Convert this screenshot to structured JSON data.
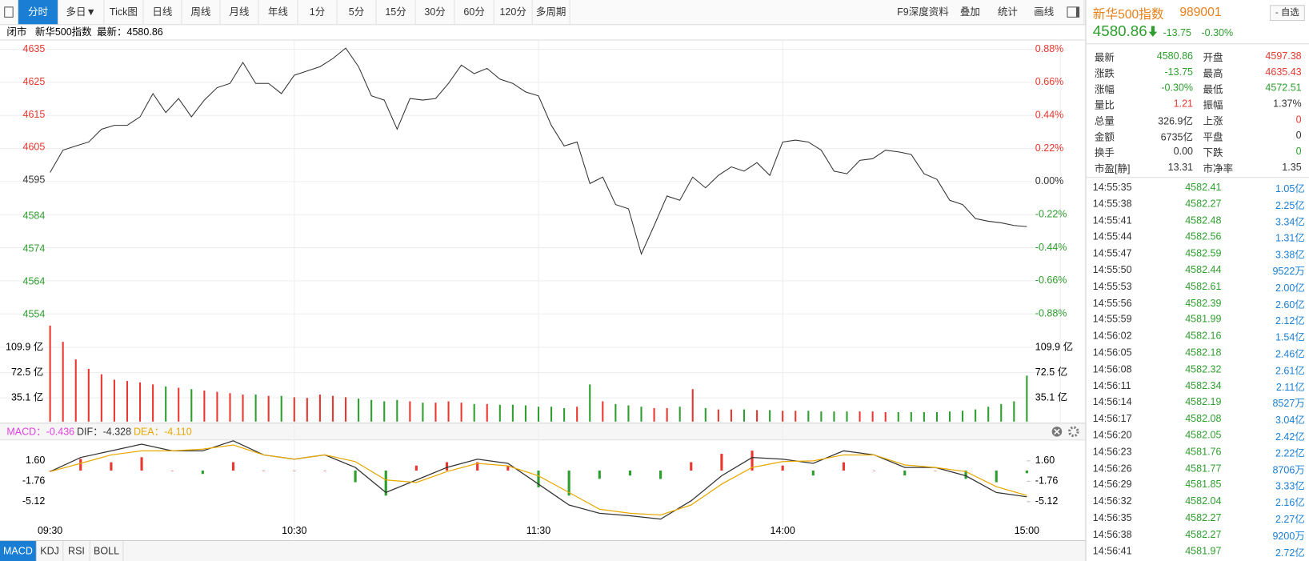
{
  "toolbar": {
    "left": [
      "分时",
      "多日▼",
      "Tick图",
      "日线",
      "周线",
      "月线",
      "年线",
      "1分",
      "5分",
      "15分",
      "30分",
      "60分",
      "120分",
      "多周期"
    ],
    "right": [
      "F9深度资料",
      "叠加",
      "统计",
      "画线"
    ],
    "active_index": 0
  },
  "info_bar": [
    "闭市",
    "新华500指数",
    "最新：4580.86"
  ],
  "chart_data": [
    {
      "type": "line",
      "color": "#333333",
      "up_color": "#e8382f",
      "down_color": "#2e9e2e",
      "flat_color": "#333333",
      "values": [
        4597.4,
        4604.2,
        4605.5,
        4606.7,
        4610.6,
        4611.8,
        4611.8,
        4614.4,
        4621.5,
        4615.7,
        4620.0,
        4614.4,
        4619.5,
        4623.3,
        4624.6,
        4631.0,
        4624.6,
        4624.6,
        4621.5,
        4627.1,
        4628.4,
        4629.7,
        4632.2,
        4635.4,
        4629.7,
        4620.8,
        4619.5,
        4610.6,
        4620.0,
        4619.5,
        4620.0,
        4624.6,
        4630.2,
        4627.6,
        4629.2,
        4625.9,
        4624.6,
        4622.0,
        4620.8,
        4611.8,
        4605.5,
        4606.7,
        4594.0,
        4596.0,
        4587.6,
        4586.3,
        4572.5,
        4581.2,
        4590.2,
        4588.9,
        4596.0,
        4592.7,
        4596.5,
        4599.1,
        4597.8,
        4600.4,
        4596.5,
        4606.7,
        4607.3,
        4606.7,
        4604.2,
        4597.8,
        4597.0,
        4601.1,
        4601.6,
        4604.2,
        4603.7,
        4602.9,
        4597.0,
        4595.3,
        4588.9,
        4587.6,
        4583.3,
        4582.5,
        4582.0,
        4581.2,
        4580.86
      ],
      "ylim": [
        4554.18,
        4635.04
      ],
      "yticks": [
        4635,
        4625,
        4615,
        4605,
        4595,
        4584,
        4574,
        4564,
        4554
      ],
      "y2lim": [
        -0.88,
        0.88
      ],
      "y2ticks": [
        {
          "value": 0.88,
          "label": "0.88%"
        },
        {
          "value": 0.66,
          "label": "0.66%"
        },
        {
          "value": 0.44,
          "label": "0.44%"
        },
        {
          "value": 0.22,
          "label": "0.22%"
        },
        {
          "value": 0,
          "label": "0.00%"
        },
        {
          "value": -0.22,
          "label": "-0.22%"
        },
        {
          "value": -0.44,
          "label": "-0.44%"
        },
        {
          "value": -0.66,
          "label": "-0.66%"
        },
        {
          "value": -0.88,
          "label": "-0.88%"
        }
      ],
      "xticks": [
        "09:30",
        "10:30",
        "11:30",
        "14:00",
        "15:00"
      ],
      "grid": true
    },
    {
      "type": "bar",
      "values": [
        142,
        118,
        92,
        78,
        70,
        62,
        60,
        58,
        55,
        52,
        50,
        48,
        46,
        44,
        42,
        40,
        40,
        38,
        38,
        36,
        35,
        40,
        38,
        36,
        34,
        32,
        30,
        32,
        30,
        28,
        28,
        30,
        28,
        26,
        26,
        25,
        25,
        24,
        22,
        22,
        20,
        22,
        55,
        30,
        26,
        24,
        22,
        20,
        20,
        22,
        48,
        20,
        18,
        18,
        18,
        17,
        17,
        16,
        16,
        16,
        15,
        15,
        15,
        15,
        15,
        14,
        14,
        14,
        14,
        14,
        15,
        16,
        18,
        22,
        26,
        30,
        68
      ],
      "ylim": [
        0,
        142
      ],
      "yticks": [
        {
          "value": 109.9,
          "label": "109.9 亿"
        },
        {
          "value": 72.5,
          "label": "72.5 亿"
        },
        {
          "value": 35.1,
          "label": "35.1 亿"
        }
      ],
      "grid": true
    },
    {
      "type": "macd",
      "legend": [
        "MACD：-0.436",
        "DIF：-4.328",
        "DEA：-4.110"
      ],
      "macd_color": "#e040e0",
      "up_color": "#e8382f",
      "down_color": "#2e9e2e",
      "histogram": [
        0,
        1.92,
        1.36,
        2.2,
        0,
        -0.56,
        1.38,
        0,
        0,
        0,
        -1.92,
        -4.12,
        0.82,
        1.38,
        1.38,
        0.82,
        -2.76,
        -4.12,
        -1.36,
        -0.82,
        -1.38,
        1.38,
        2.76,
        3.28,
        0.82,
        -0.82,
        1.36,
        0,
        -0.82,
        0,
        -1.36,
        -1.92,
        -0.436
      ],
      "series": [
        {
          "color": "#333333",
          "values": [
            -0.18,
            2.15,
            3.25,
            4.35,
            3.25,
            3.25,
            4.9,
            2.57,
            1.88,
            2.57,
            0.51,
            -3.61,
            -1.55,
            0.51,
            1.88,
            1.19,
            -2.24,
            -5.67,
            -7.04,
            -7.45,
            -8.0,
            -4.98,
            -0.86,
            2.15,
            1.88,
            1.19,
            3.25,
            2.57,
            0.51,
            0.51,
            -0.86,
            -3.61,
            -4.328
          ]
        },
        {
          "color": "#e8a800",
          "values": [
            -0.18,
            1.19,
            2.57,
            3.25,
            3.25,
            3.53,
            4.21,
            2.57,
            1.88,
            2.57,
            1.47,
            -1.55,
            -1.96,
            -0.18,
            1.19,
            0.78,
            -0.86,
            -3.61,
            -6.36,
            -7.04,
            -7.31,
            -5.67,
            -2.24,
            0.51,
            1.47,
            1.6,
            2.57,
            2.57,
            0.92,
            0.51,
            -0.18,
            -2.65,
            -4.11
          ]
        }
      ],
      "ylim": [
        -10.5,
        6.0
      ],
      "yticks": [
        {
          "value": 1.6,
          "label": "1.60"
        },
        -1.76,
        -5.12
      ]
    }
  ],
  "indicator_tabs": {
    "items": [
      "MACD",
      "KDJ",
      "RSI",
      "BOLL"
    ],
    "active_index": 0
  },
  "quote": {
    "name": "新华500指数",
    "code": "989001",
    "watchlist": "- 自选",
    "last": "4580.86",
    "change": "-13.75",
    "change_pct": "-0.30%"
  },
  "stats": [
    [
      {
        "label": "最新",
        "value": "4580.86",
        "color": "#2e9e2e"
      },
      {
        "label": "开盘",
        "value": "4597.38",
        "color": "#e8382f"
      }
    ],
    [
      {
        "label": "涨跌",
        "value": "-13.75",
        "color": "#2e9e2e"
      },
      {
        "label": "最高",
        "value": "4635.43",
        "color": "#e8382f"
      }
    ],
    [
      {
        "label": "涨幅",
        "value": "-0.30%",
        "color": "#2e9e2e"
      },
      {
        "label": "最低",
        "value": "4572.51",
        "color": "#2e9e2e"
      }
    ],
    [
      {
        "label": "量比",
        "value": "1.21",
        "color": "#e8382f"
      },
      {
        "label": "振幅",
        "value": "1.37%",
        "color": "#333333"
      }
    ],
    [
      {
        "label": "总量",
        "value": "326.9亿",
        "color": "#333333"
      },
      {
        "label": "上涨",
        "value": "0",
        "color": "#e8382f"
      }
    ],
    [
      {
        "label": "金额",
        "value": "6735亿",
        "color": "#333333"
      },
      {
        "label": "平盘",
        "value": "0",
        "color": "#333333"
      }
    ],
    [
      {
        "label": "换手",
        "value": "0.00",
        "color": "#333333"
      },
      {
        "label": "下跌",
        "value": "0",
        "color": "#2e9e2e"
      }
    ],
    [
      {
        "label": "市盈[静]",
        "value": "13.31",
        "color": "#333333"
      },
      {
        "label": "市净率",
        "value": "1.35",
        "color": "#333333"
      }
    ]
  ],
  "ticks": [
    [
      "14:55:35",
      "4582.41",
      "1.05亿"
    ],
    [
      "14:55:38",
      "4582.27",
      "2.25亿"
    ],
    [
      "14:55:41",
      "4582.48",
      "3.34亿"
    ],
    [
      "14:55:44",
      "4582.56",
      "1.31亿"
    ],
    [
      "14:55:47",
      "4582.59",
      "3.38亿"
    ],
    [
      "14:55:50",
      "4582.44",
      "9522万"
    ],
    [
      "14:55:53",
      "4582.61",
      "2.00亿"
    ],
    [
      "14:55:56",
      "4582.39",
      "2.60亿"
    ],
    [
      "14:55:59",
      "4581.99",
      "2.12亿"
    ],
    [
      "14:56:02",
      "4582.16",
      "1.54亿"
    ],
    [
      "14:56:05",
      "4582.18",
      "2.46亿"
    ],
    [
      "14:56:08",
      "4582.32",
      "2.61亿"
    ],
    [
      "14:56:11",
      "4582.34",
      "2.11亿"
    ],
    [
      "14:56:14",
      "4582.19",
      "8527万"
    ],
    [
      "14:56:17",
      "4582.08",
      "3.04亿"
    ],
    [
      "14:56:20",
      "4582.05",
      "2.42亿"
    ],
    [
      "14:56:23",
      "4581.76",
      "2.22亿"
    ],
    [
      "14:56:26",
      "4581.77",
      "8706万"
    ],
    [
      "14:56:29",
      "4581.85",
      "3.33亿"
    ],
    [
      "14:56:32",
      "4582.04",
      "2.16亿"
    ],
    [
      "14:56:35",
      "4582.27",
      "2.27亿"
    ],
    [
      "14:56:38",
      "4582.27",
      "9200万"
    ],
    [
      "14:56:41",
      "4581.97",
      "2.72亿"
    ]
  ]
}
